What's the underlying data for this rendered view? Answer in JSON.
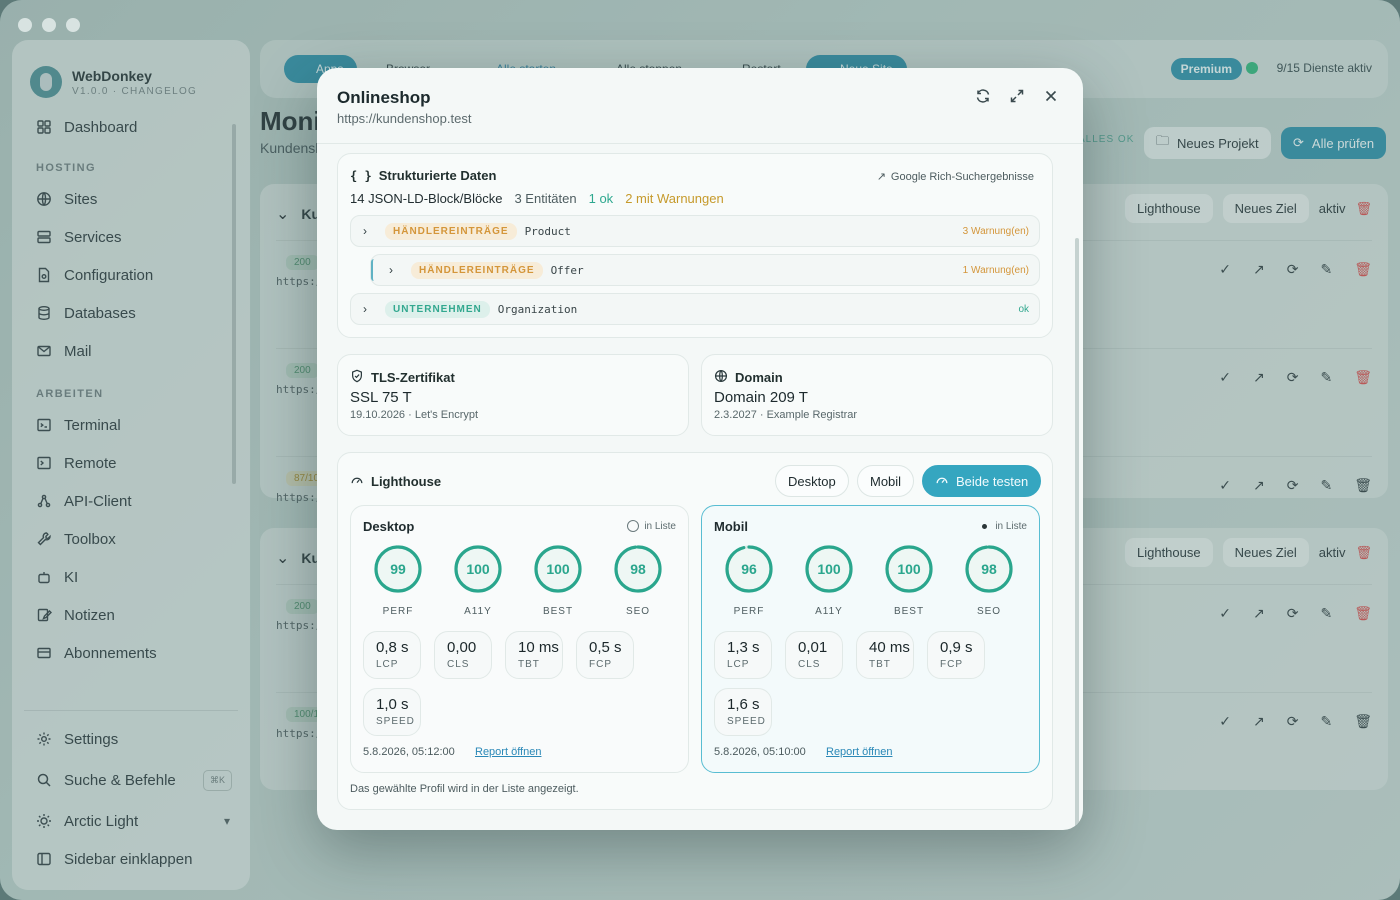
{
  "app": {
    "name": "WebDonkey",
    "version": "V1.0.0 · CHANGELOG"
  },
  "sidebar": {
    "dashboard": "Dashboard",
    "sections": [
      {
        "title": "HOSTING",
        "items": [
          {
            "label": "Sites",
            "icon": "globe-icon"
          },
          {
            "label": "Services",
            "icon": "server-icon"
          },
          {
            "label": "Configuration",
            "icon": "config-file-icon"
          },
          {
            "label": "Databases",
            "icon": "database-icon"
          },
          {
            "label": "Mail",
            "icon": "mail-icon"
          }
        ]
      },
      {
        "title": "ARBEITEN",
        "items": [
          {
            "label": "Terminal",
            "icon": "terminal-icon"
          },
          {
            "label": "Remote",
            "icon": "remote-icon"
          },
          {
            "label": "API-Client",
            "icon": "api-icon"
          },
          {
            "label": "Toolbox",
            "icon": "wrench-icon"
          },
          {
            "label": "KI",
            "icon": "robot-icon"
          },
          {
            "label": "Notizen",
            "icon": "notes-icon"
          },
          {
            "label": "Abonnements",
            "icon": "card-icon"
          }
        ]
      }
    ],
    "settings": "Settings",
    "search": "Suche & Befehle",
    "search_kbd": "⌘K",
    "theme": "Arctic Light",
    "collapse": "Sidebar einklappen"
  },
  "toolbar": {
    "apps": "Apps",
    "browser": "Browser",
    "start_all": "Alle starten",
    "stop_all": "Alle stoppen",
    "restart": "Restart",
    "new_site": "Neue Site",
    "premium": "Premium",
    "services_status": "9/15 Dienste aktiv"
  },
  "monitoring": {
    "title": "Monitoring",
    "subtitle": "Kundenshop",
    "all_ok": "ALLES OK",
    "new_project": "Neues Projekt",
    "check_all": "Alle prüfen",
    "groups": [
      {
        "name": "Kundenshop",
        "lighthouse": "Lighthouse",
        "new_target": "Neues Ziel",
        "active": "aktiv",
        "rows": [
          {
            "code": "200",
            "url": "https://kundenshop.test"
          },
          {
            "code": "200",
            "url": "https://kundenshop.test"
          },
          {
            "code": "87/100",
            "url": "https://kundenshop.test"
          }
        ]
      },
      {
        "name": "Kundenshop",
        "lighthouse": "Lighthouse",
        "new_target": "Neues Ziel",
        "active": "aktiv",
        "rows": [
          {
            "code": "200",
            "url": "https://kundenshop.test"
          },
          {
            "code": "100/100",
            "url": "https://kundenshop.test"
          }
        ]
      }
    ]
  },
  "modal": {
    "title": "Onlineshop",
    "url": "https://kundenshop.test",
    "structured_data": {
      "title": "Strukturierte Daten",
      "google_link": "Google Rich-Suchergebnisse",
      "summary": "14 JSON-LD-Block/Blöcke",
      "entities": "3 Entitäten",
      "ok": "1 ok",
      "warnings": "2 mit Warnungen",
      "rows": [
        {
          "tag": "HÄNDLEREINTRÄGE",
          "type": "Product",
          "status": "3 Warnung(en)",
          "kind": "warn"
        },
        {
          "tag": "HÄNDLEREINTRÄGE",
          "type": "Offer",
          "status": "1 Warnung(en)",
          "kind": "warn"
        },
        {
          "tag": "UNTERNEHMEN",
          "type": "Organization",
          "status": "ok",
          "kind": "okay"
        }
      ]
    },
    "tls": {
      "title": "TLS-Zertifikat",
      "value": "SSL 75 T",
      "detail": "19.10.2026 · Let's Encrypt"
    },
    "domain": {
      "title": "Domain",
      "value": "Domain 209 T",
      "detail": "2.3.2027 · Example Registrar"
    },
    "lighthouse": {
      "title": "Lighthouse",
      "btn_desktop": "Desktop",
      "btn_mobile": "Mobil",
      "btn_both": "Beide testen",
      "in_list": "in Liste",
      "report": "Report öffnen",
      "footer": "Das gewählte Profil wird in der Liste angezeigt.",
      "profiles": [
        {
          "name": "Desktop",
          "selected": false,
          "scores": [
            {
              "label": "PERF",
              "value": 99
            },
            {
              "label": "A11Y",
              "value": 100
            },
            {
              "label": "BEST",
              "value": 100
            },
            {
              "label": "SEO",
              "value": 98
            }
          ],
          "metrics": [
            {
              "v": "0,8 s",
              "l": "LCP"
            },
            {
              "v": "0,00",
              "l": "CLS"
            },
            {
              "v": "10 ms",
              "l": "TBT"
            },
            {
              "v": "0,5 s",
              "l": "FCP"
            },
            {
              "v": "1,0 s",
              "l": "SPEED"
            }
          ],
          "time": "5.8.2026, 05:12:00"
        },
        {
          "name": "Mobil",
          "selected": true,
          "scores": [
            {
              "label": "PERF",
              "value": 96
            },
            {
              "label": "A11Y",
              "value": 100
            },
            {
              "label": "BEST",
              "value": 100
            },
            {
              "label": "SEO",
              "value": 98
            }
          ],
          "metrics": [
            {
              "v": "1,3 s",
              "l": "LCP"
            },
            {
              "v": "0,01",
              "l": "CLS"
            },
            {
              "v": "40 ms",
              "l": "TBT"
            },
            {
              "v": "0,9 s",
              "l": "FCP"
            },
            {
              "v": "1,6 s",
              "l": "SPEED"
            }
          ],
          "time": "5.8.2026, 05:10:00"
        }
      ]
    }
  },
  "colors": {
    "accent": "#2a8ea8",
    "score_ok": "#2aa68d",
    "warning": "#d4963a",
    "danger": "#d84a4a"
  }
}
